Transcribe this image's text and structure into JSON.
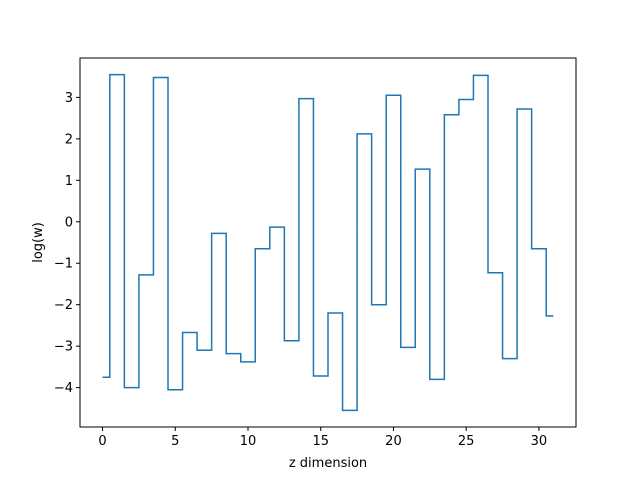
{
  "chart_data": {
    "type": "line",
    "drawstyle": "steps-mid",
    "title": "",
    "xlabel": "z dimension",
    "ylabel": "log(w)",
    "xlim": [
      -1.55,
      32.55
    ],
    "ylim": [
      -4.95,
      3.95
    ],
    "xticks": [
      0,
      5,
      10,
      15,
      20,
      25,
      30
    ],
    "yticks": [
      -4,
      -3,
      -2,
      -1,
      0,
      1,
      2,
      3
    ],
    "grid": false,
    "legend": "none",
    "color": "#1f77b4",
    "series": [
      {
        "x": [
          0,
          1,
          2,
          3,
          4,
          5,
          6,
          7,
          8,
          9,
          10,
          11,
          12,
          13,
          14,
          15,
          16,
          17,
          18,
          19,
          20,
          21,
          22,
          23,
          24,
          25,
          26,
          27,
          28,
          29,
          30,
          31
        ],
        "values": [
          -3.75,
          3.55,
          -4.0,
          -1.28,
          3.48,
          -4.05,
          -2.67,
          -3.1,
          -0.28,
          -3.18,
          -3.38,
          -0.65,
          -0.13,
          -2.87,
          2.97,
          -3.72,
          -2.2,
          -4.55,
          2.12,
          -2.0,
          3.05,
          -3.03,
          1.27,
          -3.8,
          2.58,
          2.95,
          3.53,
          -1.23,
          -3.3,
          2.72,
          -0.65,
          -2.27
        ]
      }
    ]
  }
}
